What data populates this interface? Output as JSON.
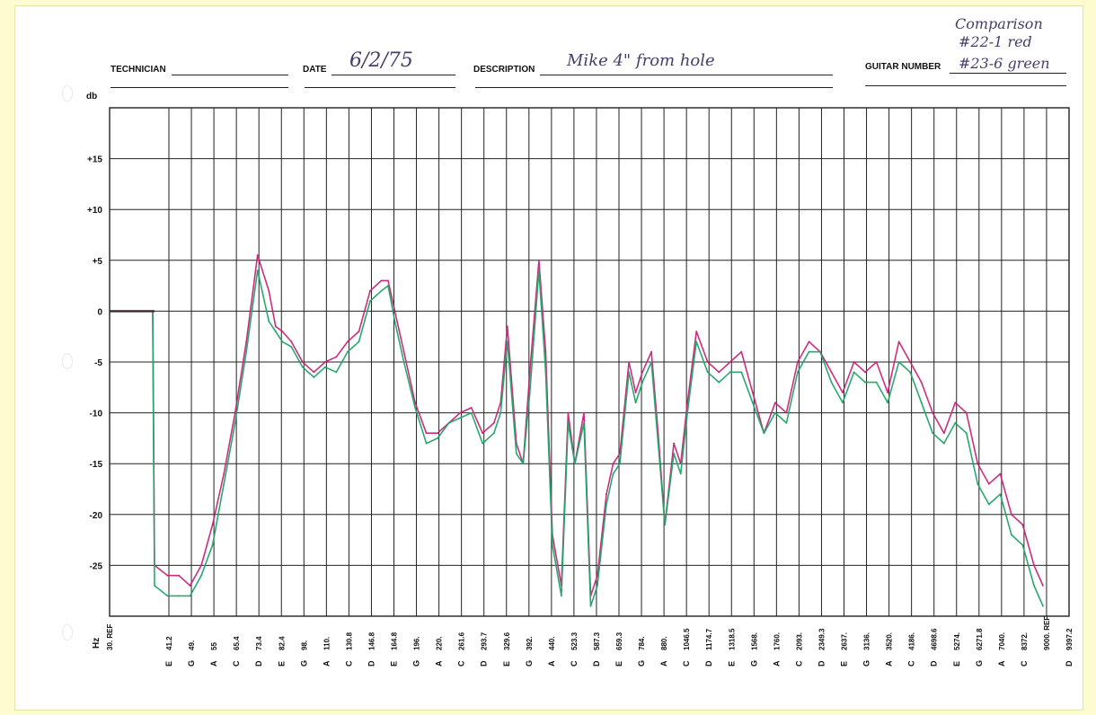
{
  "header": {
    "technician_label": "TECHNICIAN",
    "date_label": "DATE",
    "date_value": "6/2/75",
    "description_label": "DESCRIPTION",
    "description_value": "Mike 4\" from hole",
    "guitar_number_label": "GUITAR NUMBER",
    "guitar_number_value": "#23-6 green",
    "note_line1": "Comparison",
    "note_line2": "#22-1 red"
  },
  "colors": {
    "background": "#fdfccf",
    "grid": "#222222",
    "red_trace": "#c8237a",
    "green_trace": "#1fa466",
    "dark_trace": "#3a2433"
  },
  "chart_data": {
    "type": "line",
    "ylabel": "db",
    "xlabel": "Hz",
    "ylim": [
      -30,
      20
    ],
    "y_ticks": [
      "+15",
      "+10",
      "+5",
      "0",
      "-5",
      "-10",
      "-15",
      "-20",
      "-25"
    ],
    "y_tick_values": [
      15,
      10,
      5,
      0,
      -5,
      -10,
      -15,
      -20,
      -25
    ],
    "x_labels": [
      {
        "freq": "30. REF",
        "note": ""
      },
      {
        "freq": "41.2",
        "note": "E"
      },
      {
        "freq": "49.",
        "note": "G"
      },
      {
        "freq": "55",
        "note": "A"
      },
      {
        "freq": "65.4",
        "note": "C"
      },
      {
        "freq": "73.4",
        "note": "D"
      },
      {
        "freq": "82.4",
        "note": "E"
      },
      {
        "freq": "98.",
        "note": "G"
      },
      {
        "freq": "110.",
        "note": "A"
      },
      {
        "freq": "130.8",
        "note": "C"
      },
      {
        "freq": "146.8",
        "note": "D"
      },
      {
        "freq": "164.8",
        "note": "E"
      },
      {
        "freq": "196.",
        "note": "G"
      },
      {
        "freq": "220.",
        "note": "A"
      },
      {
        "freq": "261.6",
        "note": "C"
      },
      {
        "freq": "293.7",
        "note": "D"
      },
      {
        "freq": "329.6",
        "note": "E"
      },
      {
        "freq": "392.",
        "note": "G"
      },
      {
        "freq": "440.",
        "note": "A"
      },
      {
        "freq": "523.3",
        "note": "C"
      },
      {
        "freq": "587.3",
        "note": "D"
      },
      {
        "freq": "659.3",
        "note": "E"
      },
      {
        "freq": "784.",
        "note": "G"
      },
      {
        "freq": "880.",
        "note": "A"
      },
      {
        "freq": "1046.5",
        "note": "C"
      },
      {
        "freq": "1174.7",
        "note": "D"
      },
      {
        "freq": "1318.5",
        "note": "E"
      },
      {
        "freq": "1568.",
        "note": "G"
      },
      {
        "freq": "1760.",
        "note": "A"
      },
      {
        "freq": "2093.",
        "note": "C"
      },
      {
        "freq": "2349.3",
        "note": "D"
      },
      {
        "freq": "2637.",
        "note": "E"
      },
      {
        "freq": "3136.",
        "note": "G"
      },
      {
        "freq": "3520.",
        "note": "A"
      },
      {
        "freq": "4186.",
        "note": "C"
      },
      {
        "freq": "4698.6",
        "note": "D"
      },
      {
        "freq": "5274.",
        "note": "E"
      },
      {
        "freq": "6271.8",
        "note": "G"
      },
      {
        "freq": "7040.",
        "note": "A"
      },
      {
        "freq": "8372.",
        "note": "C"
      },
      {
        "freq": "9000. REF",
        "note": ""
      },
      {
        "freq": "9397.2",
        "note": "D"
      }
    ],
    "series": [
      {
        "name": "#22-1 red",
        "color": "#c8237a",
        "x_index": [
          0,
          0.8,
          1,
          1.5,
          2,
          2.5,
          3,
          3.5,
          4,
          4.5,
          5,
          5.5,
          6,
          6.3,
          6.6,
          7,
          7.5,
          8,
          8.5,
          9,
          9.5,
          10,
          10.5,
          11,
          11.3,
          11.6,
          12,
          12.5,
          13,
          13.5,
          14,
          14.5,
          15,
          15.5,
          16,
          16.3,
          16.6,
          17,
          17.3,
          17.6,
          18,
          18.3,
          18.6,
          19,
          19.3,
          19.6,
          20,
          20.3,
          20.6,
          21,
          21.3,
          21.6,
          22,
          22.3,
          22.6,
          23,
          23.3,
          23.6,
          24,
          24.3,
          24.6,
          25,
          25.5,
          26,
          26.5,
          27,
          27.5,
          28,
          28.5,
          29,
          29.5,
          30,
          30.5,
          31,
          31.5,
          32,
          32.5,
          33,
          33.5,
          34,
          34.5,
          35,
          35.5,
          36,
          36.5,
          37,
          37.5,
          38,
          38.5,
          39,
          39.5,
          40,
          40.4
        ],
        "values": [
          0,
          0,
          -25,
          -26,
          -26,
          -27,
          -25,
          -21,
          -16,
          -10,
          -3,
          5.5,
          2,
          -1.5,
          -2,
          -3,
          -5,
          -6,
          -5,
          -4.5,
          -3,
          -2,
          2,
          3,
          3,
          0,
          -4,
          -9,
          -12,
          -12,
          -11,
          -10,
          -9.5,
          -12,
          -11,
          -9,
          -1.5,
          -13,
          -15,
          -6,
          5,
          -4,
          -22,
          -27,
          -10,
          -15,
          -10,
          -28,
          -26,
          -18,
          -15,
          -14,
          -5,
          -8,
          -6,
          -4,
          -12,
          -21,
          -13,
          -15,
          -9,
          -2,
          -5,
          -6,
          -5,
          -4,
          -8,
          -12,
          -9,
          -10,
          -5,
          -3,
          -4,
          -6,
          -8,
          -5,
          -6,
          -5,
          -8,
          -3,
          -5,
          -7,
          -10,
          -12,
          -9,
          -10,
          -15,
          -17,
          -16,
          -20,
          -21,
          -25,
          -27
        ]
      },
      {
        "name": "#23-6 green",
        "color": "#1fa466",
        "x_index": [
          0,
          0.8,
          1,
          1.5,
          2,
          2.5,
          3,
          3.5,
          4,
          4.5,
          5,
          5.5,
          6,
          6.3,
          6.6,
          7,
          7.5,
          8,
          8.5,
          9,
          9.5,
          10,
          10.5,
          11,
          11.3,
          11.6,
          12,
          12.5,
          13,
          13.5,
          14,
          14.5,
          15,
          15.5,
          16,
          16.3,
          16.6,
          17,
          17.3,
          17.6,
          18,
          18.3,
          18.6,
          19,
          19.3,
          19.6,
          20,
          20.3,
          20.6,
          21,
          21.3,
          21.6,
          22,
          22.3,
          22.6,
          23,
          23.3,
          23.6,
          24,
          24.3,
          24.6,
          25,
          25.5,
          26,
          26.5,
          27,
          27.5,
          28,
          28.5,
          29,
          29.5,
          30,
          30.5,
          31,
          31.5,
          32,
          32.5,
          33,
          33.5,
          34,
          34.5,
          35,
          35.5,
          36,
          36.5,
          37,
          37.5,
          38,
          38.5,
          39,
          39.5,
          40,
          40.4
        ],
        "values": [
          0,
          0,
          -27,
          -28,
          -28,
          -28,
          -26,
          -23,
          -17,
          -11,
          -4,
          4,
          -1,
          -2,
          -3,
          -3.5,
          -5.5,
          -6.5,
          -5.5,
          -6,
          -4,
          -3,
          1,
          2,
          2.5,
          -1,
          -5,
          -9.5,
          -13,
          -12.5,
          -11,
          -10.5,
          -10,
          -13,
          -12,
          -10,
          -3,
          -14,
          -15,
          -8,
          4,
          -6,
          -23,
          -28,
          -11,
          -15,
          -11,
          -29,
          -27,
          -19,
          -16,
          -15,
          -6,
          -9,
          -7,
          -5,
          -13,
          -21,
          -14,
          -16,
          -10,
          -3,
          -6,
          -7,
          -6,
          -6,
          -9,
          -12,
          -10,
          -11,
          -6,
          -4,
          -4,
          -7,
          -9,
          -6,
          -7,
          -7,
          -9,
          -5,
          -6,
          -9,
          -12,
          -13,
          -11,
          -12,
          -17,
          -19,
          -18,
          -22,
          -23,
          -27,
          -29
        ]
      }
    ]
  }
}
